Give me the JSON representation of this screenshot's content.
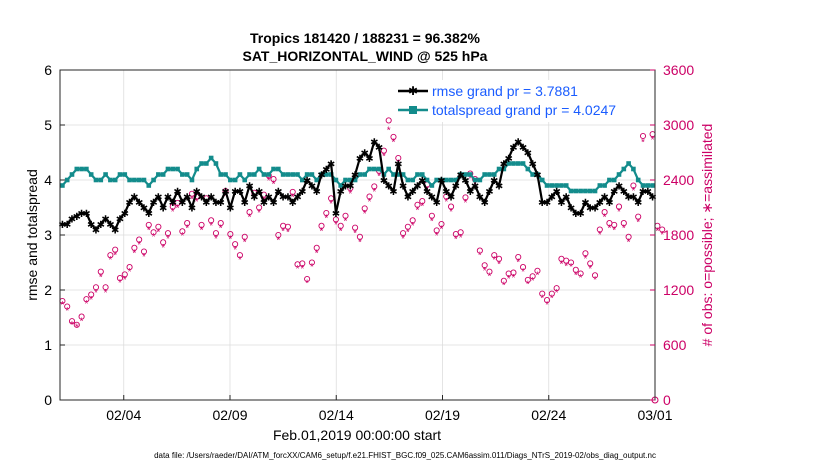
{
  "chart_data": {
    "type": "line",
    "title_line1": "Tropics 181420 / 188231 = 96.382%",
    "title_line2": "SAT_HORIZONTAL_WIND @ 525 hPa",
    "xlabel": "Feb.01,2019 00:00:00 start",
    "ylabel_left": "rmse and totalspread",
    "ylabel_right": "# of obs: o=possible; ∗=assimilated",
    "footer": "data file: /Users/raeder/DAI/ATM_forcXX/CAM6_setup/f.e21.FHIST_BGC.f09_025.CAM6assim.011/Diags_NTrS_2019-02/obs_diag_output.nc",
    "xlim": [
      0,
      28
    ],
    "ylim_left": [
      0,
      6
    ],
    "ylim_right": [
      0,
      3600
    ],
    "x_tick_values": [
      3,
      8,
      13,
      18,
      23,
      28
    ],
    "x_tick_labels": [
      "02/04",
      "02/09",
      "02/14",
      "02/19",
      "02/24",
      "03/01"
    ],
    "y_left_ticks": [
      "0",
      "1",
      "2",
      "3",
      "4",
      "5",
      "6"
    ],
    "y_right_ticks": [
      "0",
      "600",
      "1200",
      "1800",
      "2400",
      "3000",
      "3600"
    ],
    "colors": {
      "rmse": "#000000",
      "spread": "#138c8c",
      "obs": "#cc0066",
      "legend_text": "#1a5cff"
    },
    "series": [
      {
        "name": "rmse",
        "legend": "rmse grand pr = 3.7881",
        "values": [
          3.2,
          3.2,
          3.3,
          3.35,
          3.4,
          3.4,
          3.2,
          3.1,
          3.2,
          3.3,
          3.2,
          3.1,
          3.3,
          3.4,
          3.6,
          3.7,
          3.6,
          3.5,
          3.4,
          3.6,
          3.7,
          3.5,
          3.7,
          3.6,
          3.8,
          3.6,
          3.7,
          3.5,
          3.8,
          3.7,
          3.6,
          3.7,
          3.6,
          3.6,
          3.8,
          3.5,
          3.8,
          3.8,
          3.6,
          3.9,
          3.7,
          3.8,
          3.6,
          3.7,
          3.6,
          3.8,
          3.7,
          3.7,
          3.6,
          3.7,
          3.8,
          4.0,
          3.9,
          3.8,
          4.1,
          4.2,
          4.3,
          3.4,
          3.8,
          3.9,
          3.9,
          4.1,
          4.4,
          4.5,
          4.4,
          4.7,
          4.6,
          4.0,
          3.9,
          3.8,
          4.3,
          3.9,
          3.7,
          3.8,
          3.9,
          4.0,
          3.8,
          3.7,
          3.6,
          4.0,
          3.8,
          3.7,
          3.9,
          4.1,
          4.0,
          3.8,
          3.9,
          3.7,
          3.6,
          3.8,
          4.0,
          3.9,
          4.3,
          4.4,
          4.6,
          4.7,
          4.6,
          4.5,
          4.3,
          4.1,
          3.6,
          3.6,
          3.7,
          3.8,
          3.6,
          3.7,
          3.5,
          3.4,
          3.4,
          3.6,
          3.5,
          3.5,
          3.6,
          3.7,
          3.6,
          3.8,
          3.9,
          3.8,
          3.7,
          3.7,
          3.6,
          3.8,
          3.8,
          3.7
        ]
      },
      {
        "name": "totalspread",
        "legend": "totalspread grand pr = 4.0247",
        "values": [
          3.9,
          4.0,
          4.1,
          4.2,
          4.2,
          4.2,
          4.1,
          4.0,
          4.0,
          4.1,
          4.0,
          4.0,
          4.1,
          4.1,
          4.0,
          4.0,
          4.0,
          4.0,
          3.9,
          4.0,
          4.1,
          4.1,
          4.2,
          4.2,
          4.2,
          4.1,
          4.1,
          4.0,
          4.2,
          4.3,
          4.3,
          4.4,
          4.3,
          4.1,
          4.1,
          4.0,
          4.0,
          4.1,
          4.0,
          4.1,
          4.1,
          4.2,
          4.1,
          4.1,
          4.2,
          4.2,
          4.1,
          4.1,
          4.1,
          4.1,
          4.0,
          4.1,
          4.1,
          4.0,
          4.1,
          4.1,
          4.1,
          4.0,
          3.9,
          4.0,
          4.0,
          4.0,
          4.1,
          4.1,
          4.2,
          4.2,
          4.2,
          4.1,
          4.2,
          4.1,
          4.1,
          4.1,
          4.0,
          4.0,
          4.1,
          4.1,
          4.0,
          3.9,
          4.0,
          4.0,
          4.0,
          4.0,
          4.0,
          4.1,
          4.1,
          4.1,
          4.0,
          4.0,
          4.1,
          4.1,
          4.1,
          4.2,
          4.2,
          4.3,
          4.3,
          4.3,
          4.3,
          4.2,
          4.1,
          4.1,
          4.0,
          3.9,
          3.9,
          3.9,
          3.9,
          3.9,
          3.8,
          3.8,
          3.8,
          3.8,
          3.8,
          3.8,
          3.9,
          3.9,
          4.0,
          4.0,
          4.1,
          4.2,
          4.3,
          4.2,
          4.0,
          3.9,
          3.9,
          3.9
        ]
      },
      {
        "name": "obs_possible",
        "marker": "o",
        "values": [
          1080,
          1020,
          860,
          820,
          910,
          1100,
          1150,
          1230,
          1400,
          1230,
          1580,
          1640,
          1330,
          1370,
          1450,
          1660,
          1750,
          1620,
          1910,
          1830,
          1890,
          1720,
          1820,
          2110,
          2150,
          1840,
          1930,
          2250,
          2220,
          1910,
          2200,
          1960,
          1820,
          1930,
          2280,
          1810,
          1700,
          1580,
          1780,
          2050,
          2260,
          2100,
          2240,
          2450,
          2410,
          1800,
          1900,
          1890,
          2270,
          1480,
          1490,
          1320,
          1500,
          1660,
          1900,
          2040,
          2200,
          1970,
          1900,
          2010,
          2310,
          1880,
          1780,
          2090,
          2220,
          2330,
          2500,
          2720,
          3050,
          2870,
          2640,
          1820,
          1890,
          1960,
          2130,
          2170,
          2350,
          2010,
          1850,
          1920,
          2220,
          2110,
          1810,
          1830,
          2210,
          2470,
          2410,
          1630,
          1470,
          1400,
          1580,
          1540,
          1300,
          1380,
          1390,
          1560,
          1450,
          1310,
          1350,
          1410,
          1160,
          1090,
          1160,
          1220,
          1540,
          1520,
          1500,
          1420,
          1380,
          1600,
          1490,
          1360,
          1860,
          2050,
          1930,
          1910,
          2110,
          1930,
          1780,
          2340,
          2000,
          2880,
          3200,
          2900,
          1900,
          1860
        ]
      },
      {
        "name": "obs_assimilated",
        "marker": "*",
        "values": [
          1050,
          980,
          830,
          800,
          870,
          1060,
          1100,
          1180,
          1350,
          1180,
          1540,
          1590,
          1290,
          1320,
          1410,
          1610,
          1700,
          1570,
          1860,
          1790,
          1840,
          1670,
          1770,
          2060,
          2100,
          1800,
          1880,
          2200,
          2170,
          1860,
          2150,
          1910,
          1770,
          1880,
          2230,
          1760,
          1650,
          1540,
          1730,
          2000,
          2210,
          2050,
          2190,
          2400,
          2360,
          1750,
          1850,
          1840,
          2220,
          1440,
          1440,
          1280,
          1460,
          1610,
          1850,
          1990,
          2150,
          1920,
          1850,
          1960,
          2260,
          1830,
          1730,
          2040,
          2170,
          2280,
          2450,
          2670,
          2950,
          2820,
          2590,
          1770,
          1840,
          1910,
          2080,
          2120,
          2300,
          1960,
          1800,
          1870,
          2170,
          2060,
          1760,
          1780,
          2160,
          2420,
          2360,
          1590,
          1420,
          1360,
          1540,
          1490,
          1260,
          1330,
          1340,
          1510,
          1410,
          1270,
          1310,
          1370,
          1120,
          1050,
          1120,
          1180,
          1490,
          1470,
          1460,
          1370,
          1340,
          1550,
          1440,
          1320,
          1810,
          2000,
          1880,
          1860,
          2060,
          1880,
          1730,
          2290,
          1950,
          2820,
          3150,
          2850,
          1850,
          1810
        ]
      }
    ]
  }
}
